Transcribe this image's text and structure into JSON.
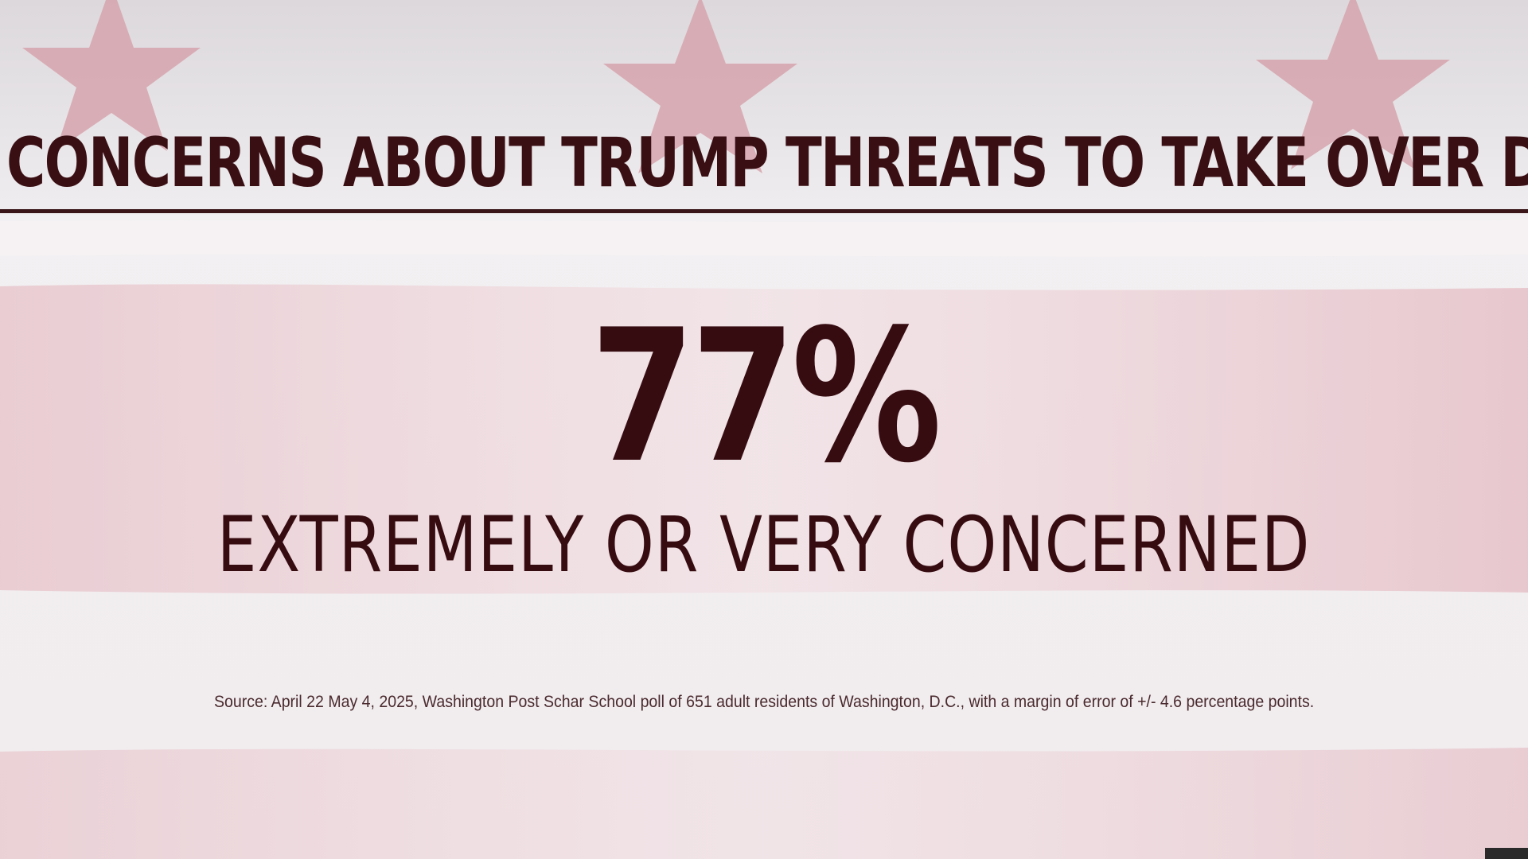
{
  "colors": {
    "text": "#360c11",
    "rule": "#3a1519",
    "stripe_red": "#d9aab3",
    "star": "#cf8a98",
    "background": "#f3eff0"
  },
  "background": {
    "decoration": "flag-stars-and-stripes"
  },
  "header": {
    "title": "CONCERNS ABOUT TRUMP THREATS TO TAKE OVER DC"
  },
  "stat": {
    "value": "77%",
    "label": "EXTREMELY OR VERY CONCERNED"
  },
  "footer": {
    "source": "Source: April 22  May 4, 2025, Washington Post  Schar School poll of 651 adult residents of Washington, D.C., with a margin of error of +/- 4.6 percentage points."
  }
}
